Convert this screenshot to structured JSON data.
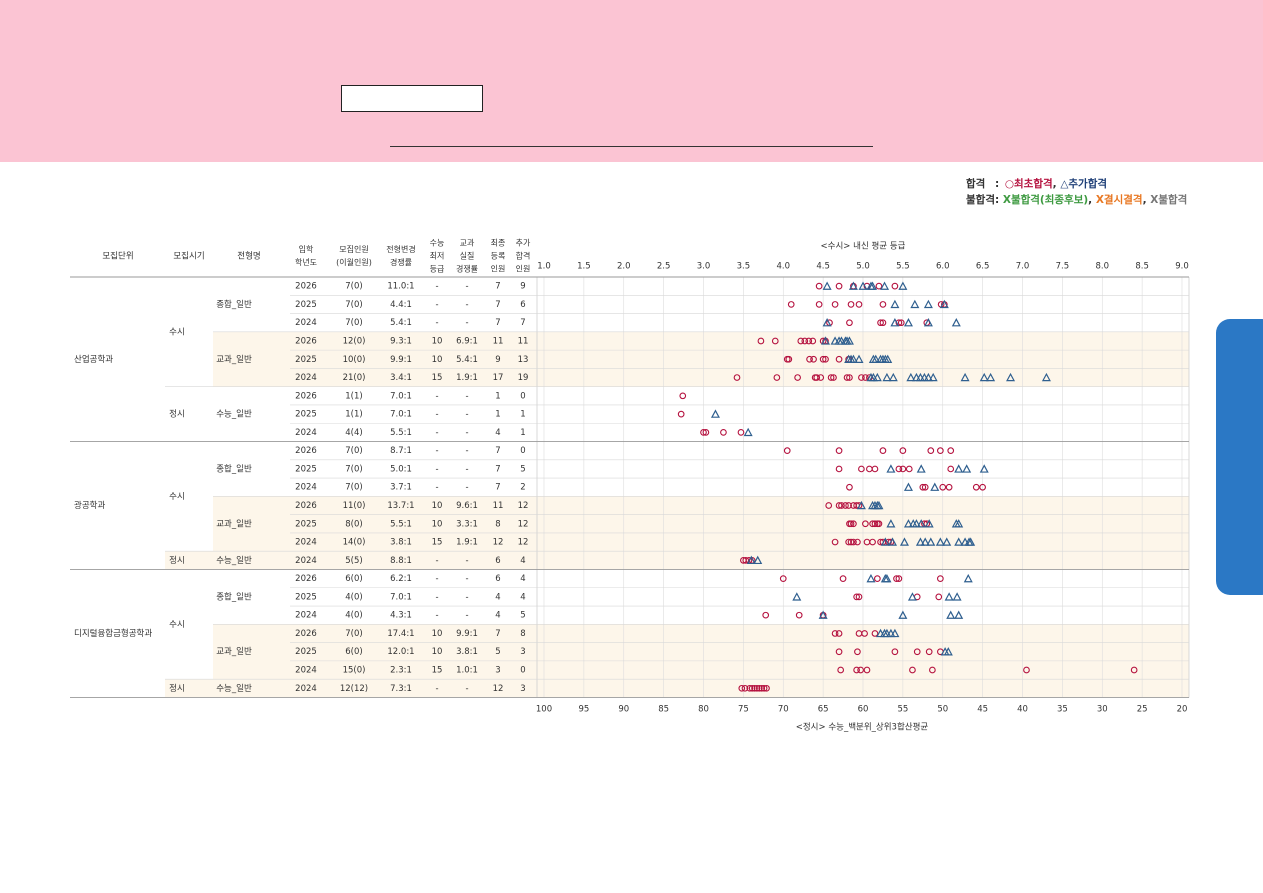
{
  "legend": {
    "pass_label": "합격",
    "pass_sep": ":",
    "first_pass": "○최초합격",
    "extra_pass": "△추가합격",
    "fail_label": "불합격:",
    "fail_waiting": "X불합격(최종후보)",
    "fail_absent": "X결시결격",
    "fail_general": "X불합격",
    "comma": ","
  },
  "table": {
    "headers": {
      "unit": "모집단위",
      "period": "모집시기",
      "type": "전형명",
      "year": [
        "입학",
        "학년도"
      ],
      "quota": [
        "모집인원",
        "(이월인원)"
      ],
      "ratio": [
        "전형변경",
        "경쟁률"
      ],
      "csat": [
        "수능",
        "최저",
        "등급"
      ],
      "practical": [
        "교과",
        "실질",
        "경쟁률"
      ],
      "enrolled": [
        "최종",
        "등록",
        "인원"
      ],
      "extra": [
        "추가",
        "합격",
        "인원"
      ]
    },
    "rows": [
      {
        "unit": "산업공학과",
        "period": "수시",
        "type": "종합_일반",
        "year": "2026",
        "quota": "7(0)",
        "ratio": "11.0:1",
        "csat": "-",
        "practical": "-",
        "enrolled": "7",
        "extra": "9"
      },
      {
        "unit": "산업공학과",
        "period": "수시",
        "type": "종합_일반",
        "year": "2025",
        "quota": "7(0)",
        "ratio": "4.4:1",
        "csat": "-",
        "practical": "-",
        "enrolled": "7",
        "extra": "6"
      },
      {
        "unit": "산업공학과",
        "period": "수시",
        "type": "종합_일반",
        "year": "2024",
        "quota": "7(0)",
        "ratio": "5.4:1",
        "csat": "-",
        "practical": "-",
        "enrolled": "7",
        "extra": "7"
      },
      {
        "unit": "산업공학과",
        "period": "수시",
        "type": "교과_일반",
        "year": "2026",
        "quota": "12(0)",
        "ratio": "9.3:1",
        "csat": "10",
        "practical": "6.9:1",
        "enrolled": "11",
        "extra": "11"
      },
      {
        "unit": "산업공학과",
        "period": "수시",
        "type": "교과_일반",
        "year": "2025",
        "quota": "10(0)",
        "ratio": "9.9:1",
        "csat": "10",
        "practical": "5.4:1",
        "enrolled": "9",
        "extra": "13"
      },
      {
        "unit": "산업공학과",
        "period": "수시",
        "type": "교과_일반",
        "year": "2024",
        "quota": "21(0)",
        "ratio": "3.4:1",
        "csat": "15",
        "practical": "1.9:1",
        "enrolled": "17",
        "extra": "19"
      },
      {
        "unit": "산업공학과",
        "period": "정시",
        "type": "수능_일반",
        "year": "2026",
        "quota": "1(1)",
        "ratio": "7.0:1",
        "csat": "-",
        "practical": "-",
        "enrolled": "1",
        "extra": "0"
      },
      {
        "unit": "산업공학과",
        "period": "정시",
        "type": "수능_일반",
        "year": "2025",
        "quota": "1(1)",
        "ratio": "7.0:1",
        "csat": "-",
        "practical": "-",
        "enrolled": "1",
        "extra": "1"
      },
      {
        "unit": "산업공학과",
        "period": "정시",
        "type": "수능_일반",
        "year": "2024",
        "quota": "4(4)",
        "ratio": "5.5:1",
        "csat": "-",
        "practical": "-",
        "enrolled": "4",
        "extra": "1"
      },
      {
        "unit": "광공학과",
        "period": "수시",
        "type": "종합_일반",
        "year": "2026",
        "quota": "7(0)",
        "ratio": "8.7:1",
        "csat": "-",
        "practical": "-",
        "enrolled": "7",
        "extra": "0"
      },
      {
        "unit": "광공학과",
        "period": "수시",
        "type": "종합_일반",
        "year": "2025",
        "quota": "7(0)",
        "ratio": "5.0:1",
        "csat": "-",
        "practical": "-",
        "enrolled": "7",
        "extra": "5"
      },
      {
        "unit": "광공학과",
        "period": "수시",
        "type": "종합_일반",
        "year": "2024",
        "quota": "7(0)",
        "ratio": "3.7:1",
        "csat": "-",
        "practical": "-",
        "enrolled": "7",
        "extra": "2"
      },
      {
        "unit": "광공학과",
        "period": "수시",
        "type": "교과_일반",
        "year": "2026",
        "quota": "11(0)",
        "ratio": "13.7:1",
        "csat": "10",
        "practical": "9.6:1",
        "enrolled": "11",
        "extra": "12"
      },
      {
        "unit": "광공학과",
        "period": "수시",
        "type": "교과_일반",
        "year": "2025",
        "quota": "8(0)",
        "ratio": "5.5:1",
        "csat": "10",
        "practical": "3.3:1",
        "enrolled": "8",
        "extra": "12"
      },
      {
        "unit": "광공학과",
        "period": "수시",
        "type": "교과_일반",
        "year": "2024",
        "quota": "14(0)",
        "ratio": "3.8:1",
        "csat": "15",
        "practical": "1.9:1",
        "enrolled": "12",
        "extra": "12"
      },
      {
        "unit": "광공학과",
        "period": "정시",
        "type": "수능_일반",
        "year": "2024",
        "quota": "5(5)",
        "ratio": "8.8:1",
        "csat": "-",
        "practical": "-",
        "enrolled": "6",
        "extra": "4"
      },
      {
        "unit": "디지털융합금형공학과",
        "period": "수시",
        "type": "종합_일반",
        "year": "2026",
        "quota": "6(0)",
        "ratio": "6.2:1",
        "csat": "-",
        "practical": "-",
        "enrolled": "6",
        "extra": "4"
      },
      {
        "unit": "디지털융합금형공학과",
        "period": "수시",
        "type": "종합_일반",
        "year": "2025",
        "quota": "4(0)",
        "ratio": "7.0:1",
        "csat": "-",
        "practical": "-",
        "enrolled": "4",
        "extra": "4"
      },
      {
        "unit": "디지털융합금형공학과",
        "period": "수시",
        "type": "종합_일반",
        "year": "2024",
        "quota": "4(0)",
        "ratio": "4.3:1",
        "csat": "-",
        "practical": "-",
        "enrolled": "4",
        "extra": "5"
      },
      {
        "unit": "디지털융합금형공학과",
        "period": "수시",
        "type": "교과_일반",
        "year": "2026",
        "quota": "7(0)",
        "ratio": "17.4:1",
        "csat": "10",
        "practical": "9.9:1",
        "enrolled": "7",
        "extra": "8"
      },
      {
        "unit": "디지털융합금형공학과",
        "period": "수시",
        "type": "교과_일반",
        "year": "2025",
        "quota": "6(0)",
        "ratio": "12.0:1",
        "csat": "10",
        "practical": "3.8:1",
        "enrolled": "5",
        "extra": "3"
      },
      {
        "unit": "디지털융합금형공학과",
        "period": "수시",
        "type": "교과_일반",
        "year": "2024",
        "quota": "15(0)",
        "ratio": "2.3:1",
        "csat": "15",
        "practical": "1.0:1",
        "enrolled": "3",
        "extra": "0"
      },
      {
        "unit": "디지털융합금형공학과",
        "period": "정시",
        "type": "수능_일반",
        "year": "2024",
        "quota": "12(12)",
        "ratio": "7.3:1",
        "csat": "-",
        "practical": "-",
        "enrolled": "12",
        "extra": "3"
      }
    ],
    "groups": [
      {
        "unit": "산업공학과",
        "periods": [
          {
            "label": "수시",
            "types": [
              {
                "label": "종합_일반",
                "rows": 3
              },
              {
                "label": "교과_일반",
                "rows": 3
              }
            ]
          },
          {
            "label": "정시",
            "types": [
              {
                "label": "수능_일반",
                "rows": 3
              }
            ]
          }
        ]
      },
      {
        "unit": "광공학과",
        "periods": [
          {
            "label": "수시",
            "types": [
              {
                "label": "종합_일반",
                "rows": 3
              },
              {
                "label": "교과_일반",
                "rows": 3
              }
            ]
          },
          {
            "label": "정시",
            "types": [
              {
                "label": "수능_일반",
                "rows": 1
              }
            ]
          }
        ]
      },
      {
        "unit": "디지털융합금형공학과",
        "periods": [
          {
            "label": "수시",
            "types": [
              {
                "label": "종합_일반",
                "rows": 3
              },
              {
                "label": "교과_일반",
                "rows": 3
              }
            ]
          },
          {
            "label": "정시",
            "types": [
              {
                "label": "수능_일반",
                "rows": 1
              }
            ]
          }
        ]
      }
    ]
  },
  "chart_data": {
    "type": "scatter",
    "top_axis_title": "<수시> 내신 평균 등급",
    "top_ticks": [
      "1.0",
      "1.5",
      "2.0",
      "2.5",
      "3.0",
      "3.5",
      "4.0",
      "4.5",
      "5.0",
      "5.5",
      "6.0",
      "6.5",
      "7.0",
      "7.5",
      "8.0",
      "8.5",
      "9.0"
    ],
    "top_range": [
      1.0,
      9.0
    ],
    "bottom_axis_title": "<정시> 수능_백분위_상위3합산평균",
    "bottom_ticks": [
      "100",
      "95",
      "90",
      "85",
      "80",
      "75",
      "70",
      "65",
      "60",
      "55",
      "50",
      "45",
      "40",
      "35",
      "30",
      "25",
      "20"
    ],
    "bottom_range": [
      100,
      20
    ],
    "grid": true,
    "colors": {
      "first_pass": "#b5123f",
      "extra_pass": "#2f5f8f",
      "grid": "#dddddd",
      "band": "#fdf6ea"
    },
    "rows": [
      {
        "axis": "grade",
        "first": [
          4.45,
          4.7,
          4.88,
          5.05,
          5.2,
          5.4
        ],
        "extra": [
          4.55,
          4.88,
          5.0,
          5.1,
          5.12,
          5.27,
          5.5
        ]
      },
      {
        "axis": "grade",
        "first": [
          4.1,
          4.45,
          4.65,
          4.85,
          4.95,
          5.25,
          5.98,
          6.02
        ],
        "extra": [
          5.4,
          5.65,
          5.82,
          6.02
        ]
      },
      {
        "axis": "grade",
        "first": [
          4.58,
          4.83,
          5.22,
          5.25,
          5.45,
          5.48,
          5.8
        ],
        "extra": [
          4.55,
          5.4,
          5.57,
          5.82,
          6.17
        ]
      },
      {
        "axis": "grade",
        "first": [
          3.72,
          3.9,
          4.22,
          4.27,
          4.32,
          4.37,
          4.5,
          4.53
        ],
        "extra": [
          4.53,
          4.65,
          4.7,
          4.73,
          4.78,
          4.8,
          4.83
        ]
      },
      {
        "axis": "grade",
        "first": [
          4.05,
          4.07,
          4.33,
          4.38,
          4.5,
          4.53,
          4.7,
          4.82
        ],
        "extra": [
          4.82,
          4.85,
          4.88,
          4.95,
          5.13,
          5.16,
          5.22,
          5.25,
          5.28,
          5.31
        ]
      },
      {
        "axis": "grade",
        "first": [
          3.42,
          3.92,
          4.18,
          4.4,
          4.42,
          4.47,
          4.6,
          4.63,
          4.8,
          4.83,
          4.98,
          5.03,
          5.08
        ],
        "extra": [
          5.1,
          5.13,
          5.18,
          5.3,
          5.38,
          5.6,
          5.67,
          5.72,
          5.77,
          5.82,
          5.88,
          6.28,
          6.52,
          6.6,
          6.85,
          7.3
        ]
      },
      {
        "axis": "score",
        "first": [
          82.6
        ],
        "extra": []
      },
      {
        "axis": "score",
        "first": [
          82.8
        ],
        "extra": [
          78.5
        ]
      },
      {
        "axis": "score",
        "first": [
          80.0,
          79.7,
          77.5,
          75.3
        ],
        "extra": [
          74.4
        ]
      },
      {
        "axis": "grade",
        "first": [
          4.05,
          4.7,
          5.25,
          5.5,
          5.85,
          5.97,
          6.1
        ],
        "extra": []
      },
      {
        "axis": "grade",
        "first": [
          4.7,
          4.98,
          5.08,
          5.15,
          5.45,
          5.5,
          5.58,
          6.1
        ],
        "extra": [
          5.35,
          5.73,
          6.2,
          6.3,
          6.52
        ]
      },
      {
        "axis": "grade",
        "first": [
          4.83,
          5.75,
          5.78,
          6.0,
          6.08,
          6.42,
          6.5
        ],
        "extra": [
          5.57,
          5.9
        ]
      },
      {
        "axis": "grade",
        "first": [
          4.57,
          4.7,
          4.73,
          4.78,
          4.82,
          4.88,
          4.92,
          4.95
        ],
        "extra": [
          4.98,
          5.12,
          5.15,
          5.18,
          5.2
        ]
      },
      {
        "axis": "grade",
        "first": [
          4.83,
          4.85,
          4.88,
          5.03,
          5.12,
          5.15,
          5.18,
          5.2,
          5.77,
          5.8
        ],
        "extra": [
          5.35,
          5.57,
          5.63,
          5.67,
          5.73,
          5.83,
          6.17,
          6.2
        ]
      },
      {
        "axis": "grade",
        "first": [
          4.65,
          4.82,
          4.85,
          4.88,
          4.93,
          5.05,
          5.12,
          5.22,
          5.25,
          5.32,
          5.35
        ],
        "extra": [
          5.28,
          5.37,
          5.52,
          5.72,
          5.78,
          5.85,
          5.97,
          6.05,
          6.2,
          6.28,
          6.33,
          6.35
        ]
      },
      {
        "axis": "score",
        "first": [
          75.0,
          74.7,
          74.3,
          73.9
        ],
        "extra": [
          74.0,
          73.2
        ]
      },
      {
        "axis": "grade",
        "first": [
          4.0,
          4.75,
          5.18,
          5.42,
          5.45,
          5.97
        ],
        "extra": [
          5.1,
          5.28,
          5.3,
          6.32
        ]
      },
      {
        "axis": "grade",
        "first": [
          4.92,
          4.95,
          5.68,
          5.95
        ],
        "extra": [
          4.17,
          5.62,
          6.08,
          6.18
        ]
      },
      {
        "axis": "grade",
        "first": [
          3.78,
          4.2,
          4.5
        ],
        "extra": [
          4.5,
          5.5,
          6.1,
          6.2
        ]
      },
      {
        "axis": "grade",
        "first": [
          4.65,
          4.7,
          4.95,
          5.02,
          5.15
        ],
        "extra": [
          5.22,
          5.27,
          5.3,
          5.35,
          5.4
        ]
      },
      {
        "axis": "grade",
        "first": [
          4.7,
          4.93,
          5.4,
          5.68,
          5.83,
          5.97
        ],
        "extra": [
          6.03,
          6.07
        ]
      },
      {
        "axis": "grade",
        "first": [
          4.72,
          4.92,
          4.97,
          5.05,
          5.62,
          5.87,
          7.05,
          8.4
        ],
        "extra": []
      },
      {
        "axis": "score",
        "first": [
          75.2,
          74.8,
          74.2,
          73.9,
          73.6,
          73.3,
          73.0,
          72.7,
          72.4,
          72.1
        ],
        "extra": []
      }
    ]
  }
}
